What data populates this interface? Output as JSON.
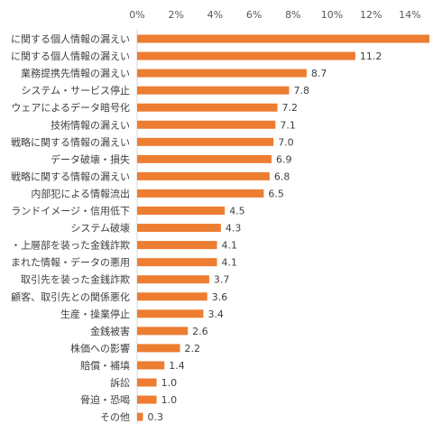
{
  "chart_data": {
    "type": "bar",
    "orientation": "horizontal",
    "categories": [
      "に関する個人情報の漏えい",
      "に関する個人情報の漏えい",
      "業務提携先情報の漏えい",
      "システム・サービス停止",
      "ウェアによるデータ暗号化",
      "技術情報の漏えい",
      "戦略に関する情報の漏えい",
      "データ破壊・損失",
      "戦略に関する情報の漏えい",
      "内部犯による情報流出",
      "ランドイメージ・信用低下",
      "システム破壊",
      "・上層部を装った金銭詐欺",
      "まれた情報・データの悪用",
      "取引先を装った金銭詐欺",
      "顧客、取引先との関係悪化",
      "生産・操業停止",
      "金銭被害",
      "株価への影響",
      "賠償・補填",
      "訴訟",
      "脅迫・恐喝",
      "その他"
    ],
    "values": [
      15.0,
      11.2,
      8.7,
      7.8,
      7.2,
      7.1,
      7.0,
      6.9,
      6.8,
      6.5,
      4.5,
      4.3,
      4.1,
      4.1,
      3.7,
      3.6,
      3.4,
      2.6,
      2.2,
      1.4,
      1.0,
      1.0,
      0.3
    ],
    "value_labels": [
      "",
      "11.2",
      "8.7",
      "7.8",
      "7.2",
      "7.1",
      "7.0",
      "6.9",
      "6.8",
      "6.5",
      "4.5",
      "4.3",
      "4.1",
      "4.1",
      "3.7",
      "3.6",
      "3.4",
      "2.6",
      "2.2",
      "1.4",
      "1.0",
      "1.0",
      "0.3"
    ],
    "xticks": [
      "0%",
      "2%",
      "4%",
      "6%",
      "8%",
      "10%",
      "12%",
      "14%"
    ],
    "xlim": [
      0,
      15
    ],
    "bar_color": "#ED7D31",
    "grid": false,
    "legend": "none"
  }
}
